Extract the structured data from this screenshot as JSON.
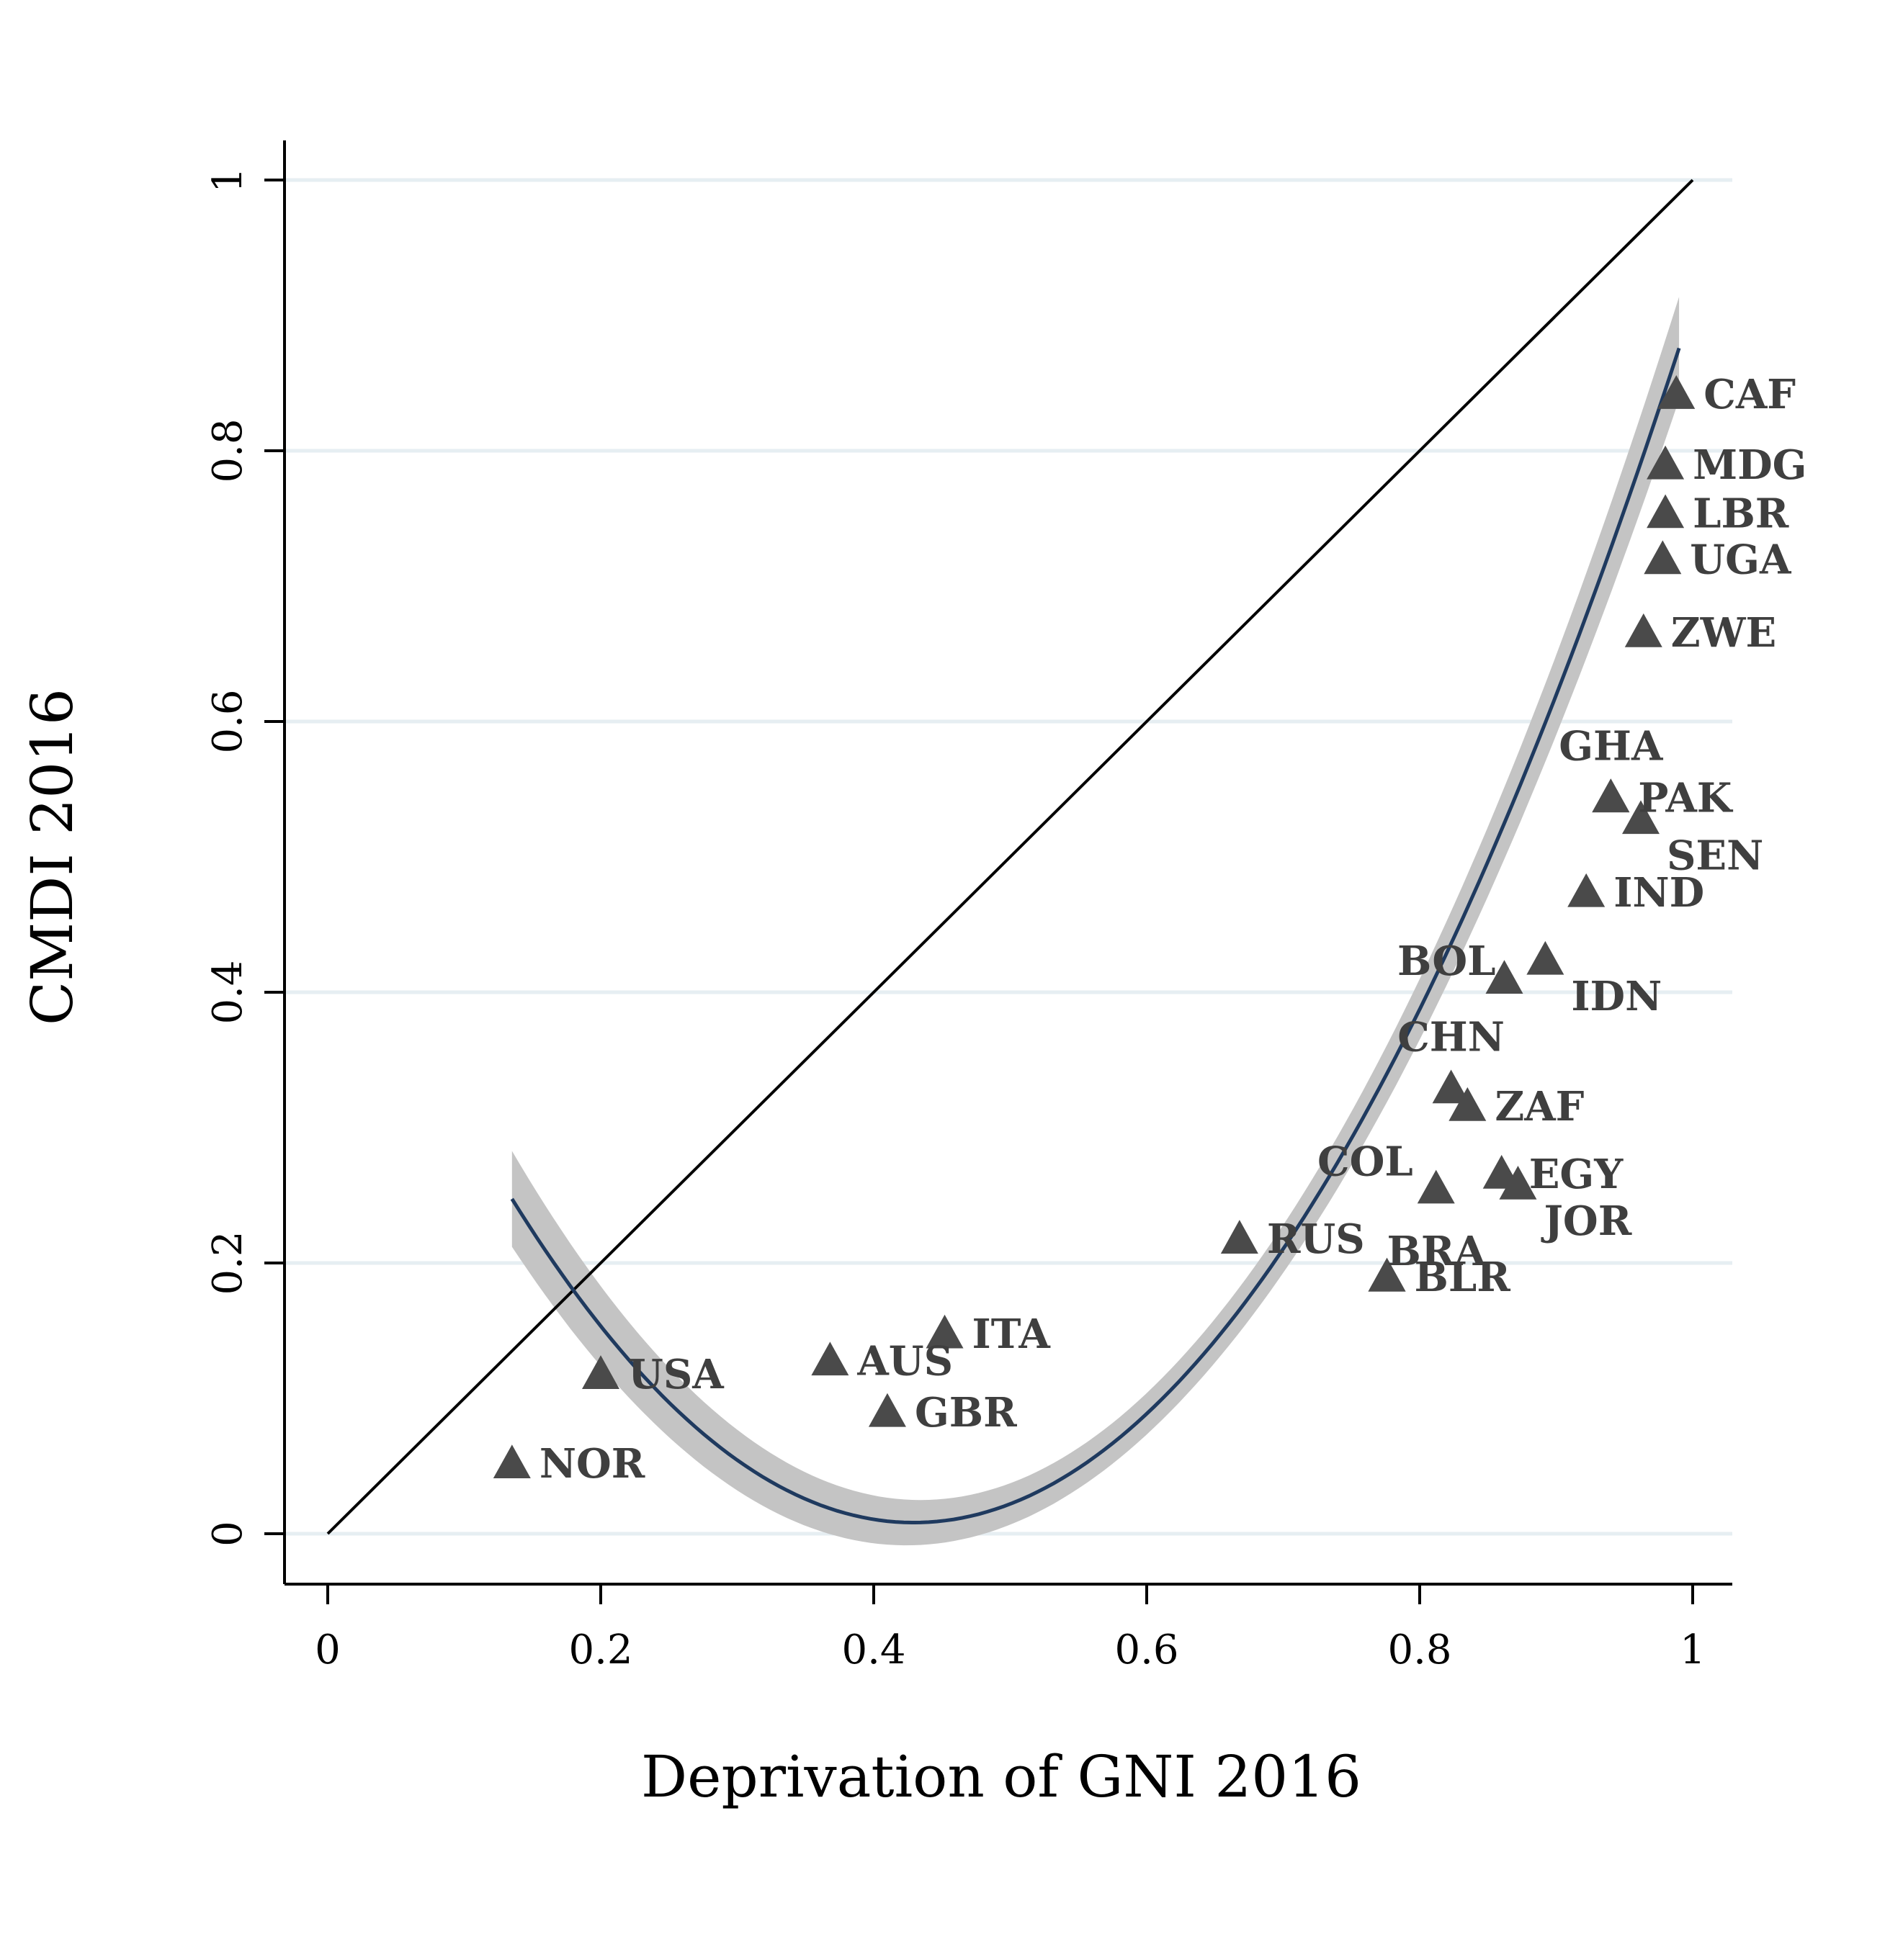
{
  "chart_data": {
    "type": "scatter",
    "title": "",
    "xlabel": "Deprivation of GNI 2016",
    "ylabel": "CMDI 2016",
    "xlim": [
      0,
      1
    ],
    "ylim": [
      0,
      1
    ],
    "xticks": [
      {
        "value": 0,
        "label": "0"
      },
      {
        "value": 0.2,
        "label": "0.2"
      },
      {
        "value": 0.4,
        "label": "0.4"
      },
      {
        "value": 0.6,
        "label": "0.6"
      },
      {
        "value": 0.8,
        "label": "0.8"
      },
      {
        "value": 1,
        "label": "1"
      }
    ],
    "yticks": [
      {
        "value": 0,
        "label": "0"
      },
      {
        "value": 0.2,
        "label": "0.2"
      },
      {
        "value": 0.4,
        "label": "0.4"
      },
      {
        "value": 0.6,
        "label": "0.6"
      },
      {
        "value": 0.8,
        "label": "0.8"
      },
      {
        "value": 1,
        "label": "1"
      }
    ],
    "grid": "horizontal",
    "reference_line": {
      "name": "45-degree line",
      "from": [
        0,
        0
      ],
      "to": [
        1,
        1
      ],
      "color": "#000000"
    },
    "fit": {
      "name": "quadratic fit with confidence interval",
      "type": "quadratic",
      "x_range": [
        0.135,
        0.99
      ],
      "coefficients": {
        "a": 2.76,
        "b": -2.37,
        "c": 0.517
      },
      "ci_half_width": 0.015,
      "line_color": "#1f3a5f",
      "band_color": "#c4c4c4"
    },
    "series": [
      {
        "name": "countries",
        "marker": "triangle",
        "color": "#4a4a4a",
        "points": [
          {
            "label": "NOR",
            "x": 0.135,
            "y": 0.052,
            "label_pos": "right"
          },
          {
            "label": "USA",
            "x": 0.2,
            "y": 0.118,
            "label_pos": "right"
          },
          {
            "label": "AUS",
            "x": 0.368,
            "y": 0.128,
            "label_pos": "right"
          },
          {
            "label": "GBR",
            "x": 0.41,
            "y": 0.09,
            "label_pos": "right"
          },
          {
            "label": "ITA",
            "x": 0.452,
            "y": 0.148,
            "label_pos": "right"
          },
          {
            "label": "RUS",
            "x": 0.668,
            "y": 0.218,
            "label_pos": "right"
          },
          {
            "label": "BLR",
            "x": 0.776,
            "y": 0.19,
            "label_pos": "right"
          },
          {
            "label": "BRA",
            "x": 0.776,
            "y": 0.19,
            "label_pos": "above-right"
          },
          {
            "label": "COL",
            "x": 0.812,
            "y": 0.255,
            "label_pos": "above-left"
          },
          {
            "label": "EGY",
            "x": 0.86,
            "y": 0.266,
            "label_pos": "right"
          },
          {
            "label": "JOR",
            "x": 0.872,
            "y": 0.258,
            "label_pos": "below-right"
          },
          {
            "label": "ZAF",
            "x": 0.835,
            "y": 0.316,
            "label_pos": "right"
          },
          {
            "label": "CHN",
            "x": 0.823,
            "y": 0.329,
            "label_pos": "above"
          },
          {
            "label": "BOL",
            "x": 0.862,
            "y": 0.41,
            "label_pos": "left"
          },
          {
            "label": "IDN",
            "x": 0.892,
            "y": 0.424,
            "label_pos": "below-right"
          },
          {
            "label": "IND",
            "x": 0.922,
            "y": 0.474,
            "label_pos": "right"
          },
          {
            "label": "SEN",
            "x": 0.962,
            "y": 0.528,
            "label_pos": "below-right"
          },
          {
            "label": "PAK",
            "x": 0.94,
            "y": 0.544,
            "label_pos": "right"
          },
          {
            "label": "GHA",
            "x": 0.94,
            "y": 0.544,
            "label_pos": "above"
          },
          {
            "label": "ZWE",
            "x": 0.964,
            "y": 0.666,
            "label_pos": "right"
          },
          {
            "label": "UGA",
            "x": 0.978,
            "y": 0.72,
            "label_pos": "right"
          },
          {
            "label": "LBR",
            "x": 0.98,
            "y": 0.754,
            "label_pos": "right"
          },
          {
            "label": "MDG",
            "x": 0.98,
            "y": 0.79,
            "label_pos": "right"
          },
          {
            "label": "CAF",
            "x": 0.988,
            "y": 0.842,
            "label_pos": "right"
          }
        ]
      }
    ]
  }
}
